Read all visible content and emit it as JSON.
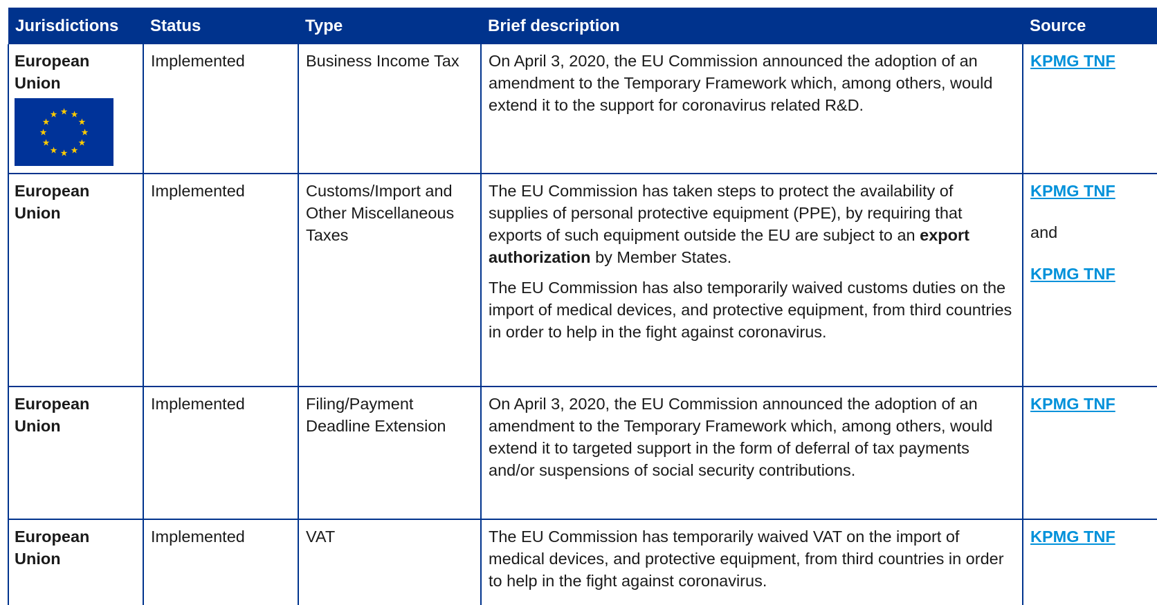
{
  "table": {
    "columns": [
      "Jurisdictions",
      "Status",
      "Type",
      "Brief description",
      "Source"
    ],
    "rows": [
      {
        "jurisdiction": "European Union",
        "status": "Implemented",
        "type": "Business Income Tax",
        "description": [
          [
            {
              "text": "On April 3, 2020, the EU Commission announced the adoption of an amendment to the Temporary Framework which, among others, would extend it to the support for coronavirus related R&D."
            }
          ]
        ],
        "source": [
          {
            "text": "KPMG TNF",
            "link": true
          }
        ]
      },
      {
        "jurisdiction": "European Union",
        "status": "Implemented",
        "type": "Customs/Import and Other Miscellaneous Taxes",
        "description": [
          [
            {
              "text": "The EU Commission has taken steps to protect the availability of supplies of personal protective equipment (PPE), by requiring that exports of such equipment outside the EU are subject to an"
            },
            {
              "text": "export authorization",
              "bold": true
            },
            {
              "text": "by Member States."
            }
          ],
          [
            {
              "text": "The EU Commission has also temporarily waived customs duties on the import of medical devices, and protective equipment, from third countries in order to help in the fight against coronavirus."
            }
          ]
        ],
        "source": [
          {
            "text": "KPMG TNF",
            "link": true
          },
          {
            "text": "and"
          },
          {
            "text": "KPMG TNF",
            "link": true
          }
        ]
      },
      {
        "jurisdiction": "European Union",
        "status": "Implemented",
        "type": "Filing/Payment Deadline Extension",
        "description": [
          [
            {
              "text": "On April 3, 2020, the EU Commission announced the adoption of an amendment to the Temporary Framework which, among others, would extend it to targeted support in the form of deferral of tax payments and/or suspensions of social security contributions."
            }
          ]
        ],
        "source": [
          {
            "text": "KPMG TNF",
            "link": true
          }
        ]
      },
      {
        "jurisdiction": "European Union",
        "status": "Implemented",
        "type": "VAT",
        "description": [
          [
            {
              "text": "The EU Commission has temporarily waived VAT on the import of medical devices, and protective equipment, from third countries in order to help in the fight against coronavirus."
            }
          ]
        ],
        "source": [
          {
            "text": "KPMG TNF",
            "link": true
          }
        ]
      }
    ]
  }
}
